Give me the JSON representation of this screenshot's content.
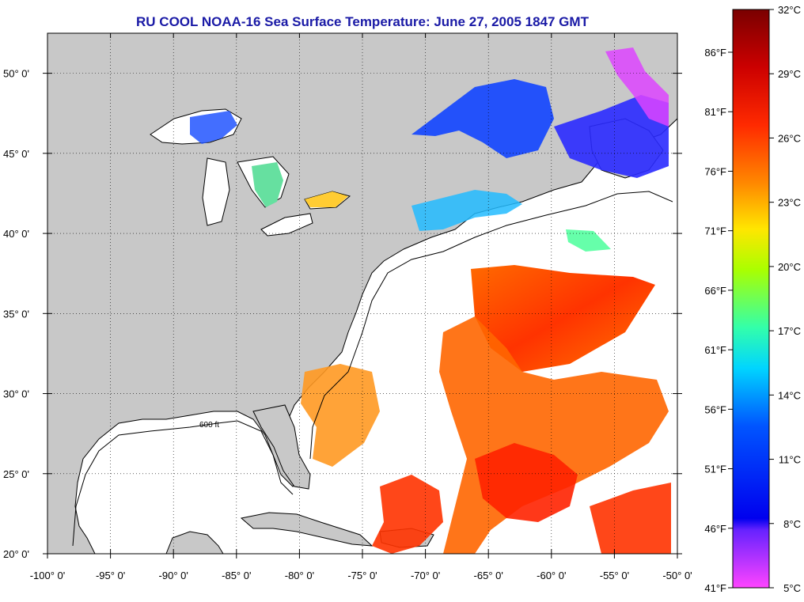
{
  "title": "RU COOL  NOAA-16  Sea Surface Temperature:  June 27, 2005 1847 GMT",
  "map": {
    "lon_range": [
      -100,
      -50
    ],
    "lat_range": [
      20,
      52.5
    ],
    "lon_ticks": [
      "-100° 0'",
      "-95° 0'",
      "-90° 0'",
      "-85° 0'",
      "-80° 0'",
      "-75° 0'",
      "-70° 0'",
      "-65° 0'",
      "-60° 0'",
      "-55° 0'",
      "-50° 0'"
    ],
    "lat_ticks": [
      "20° 0'",
      "25° 0'",
      "30° 0'",
      "35° 0'",
      "40° 0'",
      "45° 0'",
      "50° 0'"
    ],
    "land_color": "#c8c8c8",
    "water_color": "#ffffff",
    "isobath_labels": [
      "600 ft"
    ]
  },
  "colorbar": {
    "celsius": [
      "32°C",
      "29°C",
      "26°C",
      "23°C",
      "20°C",
      "17°C",
      "14°C",
      "11°C",
      "8°C",
      "5°C"
    ],
    "fahrenheit": [
      "86°F",
      "81°F",
      "76°F",
      "71°F",
      "66°F",
      "61°F",
      "56°F",
      "51°F",
      "46°F",
      "41°F"
    ],
    "colors": [
      "#7a0000",
      "#d40000",
      "#ff2a00",
      "#ff7a00",
      "#ffcc00",
      "#ddff00",
      "#66ff44",
      "#00ffcc",
      "#00aaff",
      "#0033ff",
      "#2a00ff",
      "#9a33ff",
      "#ff44ff"
    ]
  }
}
